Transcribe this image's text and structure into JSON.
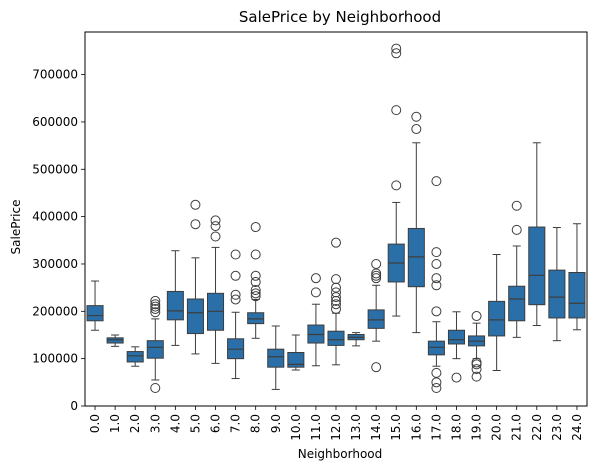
{
  "chart_data": {
    "type": "boxplot",
    "title": "SalePrice by Neighborhood",
    "xlabel": "Neighborhood",
    "ylabel": "SalePrice",
    "ylim": [
      0,
      790000
    ],
    "yticks": [
      0,
      100000,
      200000,
      300000,
      400000,
      500000,
      600000,
      700000
    ],
    "ytick_labels": [
      "0",
      "100000",
      "200000",
      "300000",
      "400000",
      "500000",
      "600000",
      "700000"
    ],
    "grid": false,
    "box_color": "#2a6fa8",
    "categories": [
      "0.0",
      "1.0",
      "2.0",
      "3.0",
      "4.0",
      "5.0",
      "6.0",
      "7.0",
      "8.0",
      "9.0",
      "10.0",
      "11.0",
      "12.0",
      "13.0",
      "14.0",
      "15.0",
      "16.0",
      "17.0",
      "18.0",
      "19.0",
      "20.0",
      "21.0",
      "22.0",
      "23.0",
      "24.0"
    ],
    "boxes": [
      {
        "whislo": 160000,
        "q1": 180000,
        "med": 191000,
        "q3": 212000,
        "whishi": 264000,
        "fliers": []
      },
      {
        "whislo": 126000,
        "q1": 133000,
        "med": 140000,
        "q3": 144000,
        "whishi": 150000,
        "fliers": []
      },
      {
        "whislo": 84000,
        "q1": 93000,
        "med": 106000,
        "q3": 115000,
        "whishi": 125000,
        "fliers": []
      },
      {
        "whislo": 55000,
        "q1": 101000,
        "med": 124000,
        "q3": 138000,
        "whishi": 184000,
        "fliers": [
          38000,
          198000,
          205000,
          210000,
          215000,
          222000
        ]
      },
      {
        "whislo": 128000,
        "q1": 182000,
        "med": 201000,
        "q3": 242000,
        "whishi": 328000,
        "fliers": []
      },
      {
        "whislo": 110000,
        "q1": 153000,
        "med": 197000,
        "q3": 226000,
        "whishi": 313000,
        "fliers": [
          384000,
          425000
        ]
      },
      {
        "whislo": 90000,
        "q1": 160000,
        "med": 200000,
        "q3": 238000,
        "whishi": 335000,
        "fliers": [
          358000,
          380000,
          392000
        ]
      },
      {
        "whislo": 58000,
        "q1": 100000,
        "med": 120000,
        "q3": 142000,
        "whishi": 198000,
        "fliers": [
          225000,
          235000,
          275000,
          320000
        ]
      },
      {
        "whislo": 143000,
        "q1": 174000,
        "med": 184000,
        "q3": 197000,
        "whishi": 225000,
        "fliers": [
          232000,
          238000,
          245000,
          262000,
          275000,
          320000,
          378000
        ]
      },
      {
        "whislo": 35000,
        "q1": 82000,
        "med": 104000,
        "q3": 120000,
        "whishi": 169000,
        "fliers": []
      },
      {
        "whislo": 76000,
        "q1": 82000,
        "med": 88000,
        "q3": 113000,
        "whishi": 150000,
        "fliers": []
      },
      {
        "whislo": 85000,
        "q1": 133000,
        "med": 151000,
        "q3": 171000,
        "whishi": 215000,
        "fliers": [
          240000,
          270000
        ]
      },
      {
        "whislo": 87000,
        "q1": 128000,
        "med": 140000,
        "q3": 158000,
        "whishi": 196000,
        "fliers": [
          205000,
          215000,
          222000,
          230000,
          240000,
          250000,
          268000,
          345000
        ]
      },
      {
        "whislo": 127000,
        "q1": 140000,
        "med": 145000,
        "q3": 151000,
        "whishi": 155000,
        "fliers": []
      },
      {
        "whislo": 137000,
        "q1": 164000,
        "med": 182000,
        "q3": 203000,
        "whishi": 255000,
        "fliers": [
          82000,
          270000,
          275000,
          280000,
          300000
        ]
      },
      {
        "whislo": 190000,
        "q1": 262000,
        "med": 302000,
        "q3": 342000,
        "whishi": 430000,
        "fliers": [
          466000,
          625000,
          745000,
          755000
        ]
      },
      {
        "whislo": 155000,
        "q1": 252000,
        "med": 315000,
        "q3": 375000,
        "whishi": 556000,
        "fliers": [
          585000,
          611000
        ]
      },
      {
        "whislo": 84000,
        "q1": 108000,
        "med": 124000,
        "q3": 137000,
        "whishi": 178000,
        "fliers": [
          38000,
          50000,
          70000,
          200000,
          255000,
          270000,
          300000,
          325000,
          475000
        ]
      },
      {
        "whislo": 100000,
        "q1": 131000,
        "med": 140000,
        "q3": 160000,
        "whishi": 199000,
        "fliers": [
          60000
        ]
      },
      {
        "whislo": 100000,
        "q1": 127000,
        "med": 137000,
        "q3": 148000,
        "whishi": 175000,
        "fliers": [
          62000,
          78000,
          88000,
          92000,
          190000
        ]
      },
      {
        "whislo": 75000,
        "q1": 148000,
        "med": 182000,
        "q3": 221000,
        "whishi": 320000,
        "fliers": []
      },
      {
        "whislo": 145000,
        "q1": 180000,
        "med": 226000,
        "q3": 253000,
        "whishi": 338000,
        "fliers": [
          372000,
          423000
        ]
      },
      {
        "whislo": 170000,
        "q1": 214000,
        "med": 276000,
        "q3": 378000,
        "whishi": 556000,
        "fliers": []
      },
      {
        "whislo": 138000,
        "q1": 186000,
        "med": 230000,
        "q3": 287000,
        "whishi": 377000,
        "fliers": []
      },
      {
        "whislo": 161000,
        "q1": 186000,
        "med": 217000,
        "q3": 282000,
        "whishi": 385000,
        "fliers": []
      }
    ]
  }
}
